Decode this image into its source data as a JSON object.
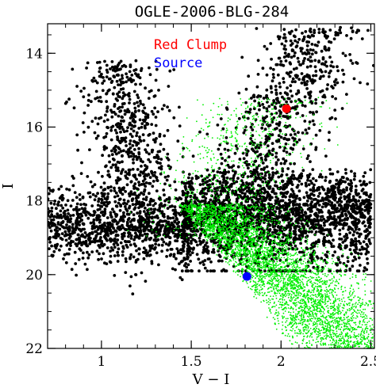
{
  "chart_data": {
    "type": "scatter",
    "title": "OGLE-2006-BLG-284",
    "xlabel": "V − I",
    "ylabel": "I",
    "xlim": [
      0.7,
      2.52
    ],
    "ylim": [
      22,
      13.2
    ],
    "y_inverted": true,
    "x_ticks": [
      "1",
      "1.5",
      "2",
      "2.5"
    ],
    "y_ticks": [
      "14",
      "16",
      "18",
      "20",
      "22"
    ],
    "grid": false,
    "legend_position": "top-center",
    "colors": {
      "black_stars": "#000000",
      "green_stars": "#00ee00",
      "red_clump": "#ff0000",
      "source": "#0000ff"
    },
    "annotations": [
      {
        "label": "Red Clump",
        "color": "#ff0000"
      },
      {
        "label": "Source",
        "color": "#0000ff"
      }
    ],
    "highlight_points": [
      {
        "name": "Red Clump",
        "x": 2.03,
        "y": 15.5,
        "color": "#ff0000"
      },
      {
        "name": "Source",
        "x": 1.81,
        "y": 20.05,
        "color": "#0000ff"
      }
    ],
    "series": [
      {
        "color": "#000000",
        "marker": "dot",
        "description_of_distribution": [
          {
            "region": "disk main sequence",
            "x_range": [
              1.0,
              1.6
            ],
            "y_range": [
              14.2,
              19.0
            ]
          },
          {
            "region": "red giant branch / clump",
            "x_range": [
              1.7,
              2.5
            ],
            "y_range": [
              13.3,
              17.5
            ]
          },
          {
            "region": "dense bulge core",
            "x_range": [
              1.4,
              2.5
            ],
            "y_range": [
              17.0,
              19.8
            ]
          },
          {
            "region": "blue horizontal spread",
            "x_range": [
              0.7,
              1.45
            ],
            "y_range": [
              18.2,
              20.5
            ]
          }
        ]
      },
      {
        "color": "#00ee00",
        "marker": "small-dot",
        "description_of_distribution": [
          {
            "region": "bulge main sequence turnoff",
            "x_range": [
              1.35,
              2.52
            ],
            "y_range": [
              18.0,
              22.0
            ]
          },
          {
            "region": "subgiant / giant overlay",
            "x_range": [
              1.2,
              2.4
            ],
            "y_range": [
              15.0,
              19.0
            ]
          }
        ]
      }
    ]
  }
}
